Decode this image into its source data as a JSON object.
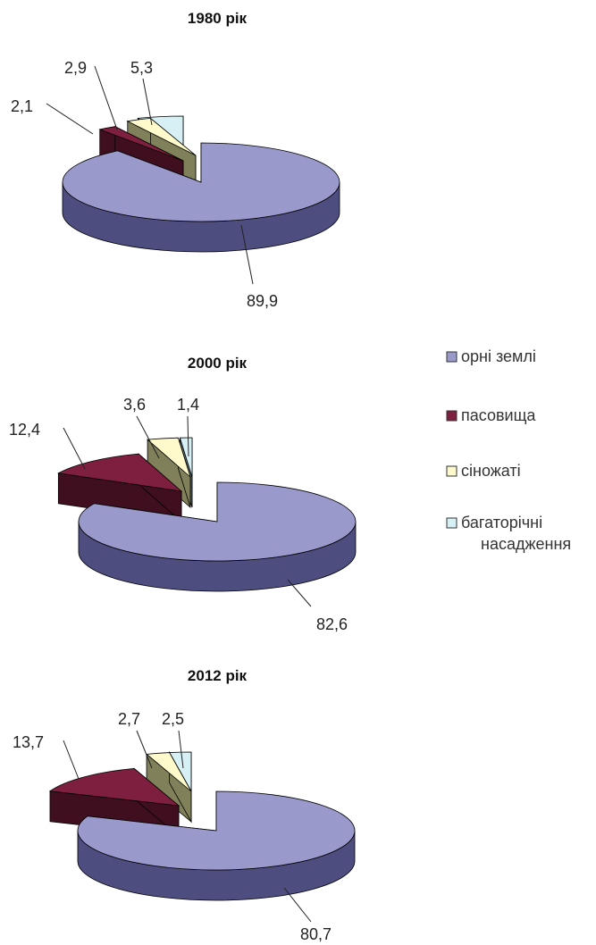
{
  "chart_data": [
    {
      "type": "pie",
      "title": "1980 рік",
      "categories": [
        "орні землі",
        "пасовища",
        "сіножаті",
        "багаторічні насадження"
      ],
      "values": [
        89.9,
        2.1,
        2.9,
        5.3
      ],
      "labels": [
        "89,9",
        "2,1",
        "2,9",
        "5,3"
      ],
      "exploded": [
        false,
        true,
        true,
        true
      ],
      "style": "3d"
    },
    {
      "type": "pie",
      "title": "2000 рік",
      "categories": [
        "орні землі",
        "пасовища",
        "сіножаті",
        "багаторічні насадження"
      ],
      "values": [
        82.6,
        12.4,
        3.6,
        1.4
      ],
      "labels": [
        "82,6",
        "12,4",
        "3,6",
        "1,4"
      ],
      "exploded": [
        false,
        true,
        true,
        true
      ],
      "style": "3d"
    },
    {
      "type": "pie",
      "title": "2012 рік",
      "categories": [
        "орні землі",
        "пасовища",
        "сіножаті",
        "багаторічні насадження"
      ],
      "values": [
        80.7,
        13.7,
        2.7,
        2.5
      ],
      "labels": [
        "80,7",
        "13,7",
        "2,7",
        "2,5"
      ],
      "exploded": [
        false,
        true,
        true,
        true
      ],
      "style": "3d"
    }
  ],
  "legend": {
    "placement": "right",
    "items": [
      {
        "label": "орні землі",
        "color": "#9999cc"
      },
      {
        "label": "пасовища",
        "color": "#7f1f3f"
      },
      {
        "label": "сіножаті",
        "color": "#fffacc"
      },
      {
        "label": "багаторічні насадження",
        "label_lines": [
          "багаторічні",
          "насадження"
        ],
        "color": "#d6f0f5"
      }
    ]
  },
  "colors": {
    "top": [
      "#9999cc",
      "#7f1f3f",
      "#fffacc",
      "#d6f0f5"
    ],
    "side": [
      "#4d4d80",
      "#3f0f1f",
      "#80805a",
      "#5e7075"
    ]
  }
}
